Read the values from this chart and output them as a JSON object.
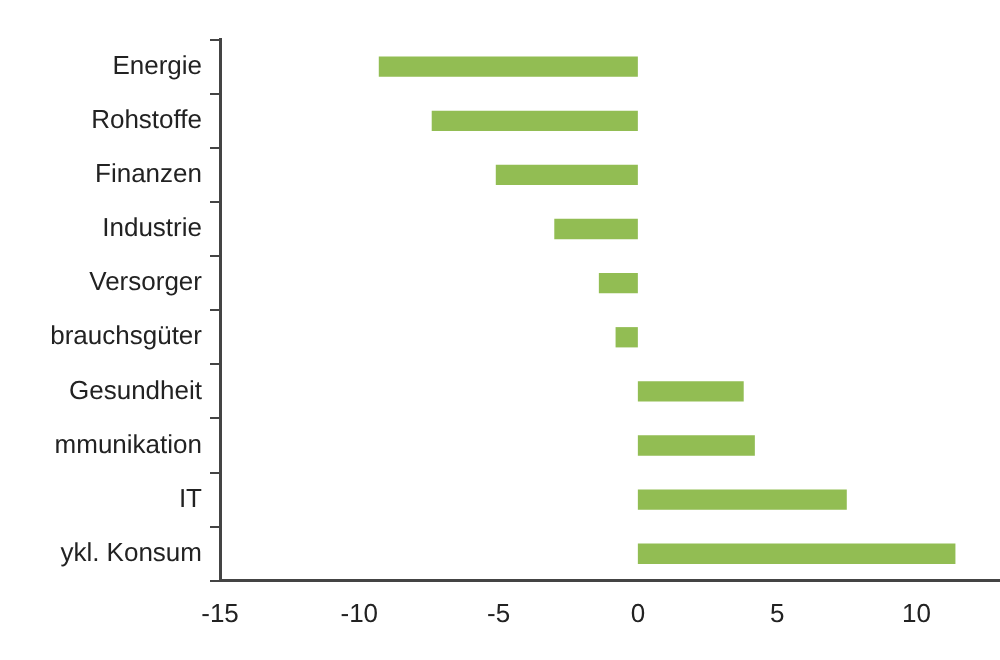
{
  "chart_data": {
    "type": "bar",
    "orientation": "horizontal",
    "categories": [
      "Energie",
      "Rohstoffe",
      "Finanzen",
      "Industrie",
      "Versorger",
      "brauchsgüter",
      "Gesundheit",
      "mmunikation",
      "IT",
      "ykl. Konsum"
    ],
    "values": [
      -9.3,
      -7.4,
      -5.1,
      -3.0,
      -1.4,
      -0.8,
      3.8,
      4.2,
      7.5,
      11.4
    ],
    "color": "#92bd53",
    "xlim": [
      -15,
      13
    ],
    "xticks": [
      -15,
      -10,
      -5,
      0,
      5,
      10
    ],
    "grid": false,
    "legend": false
  }
}
